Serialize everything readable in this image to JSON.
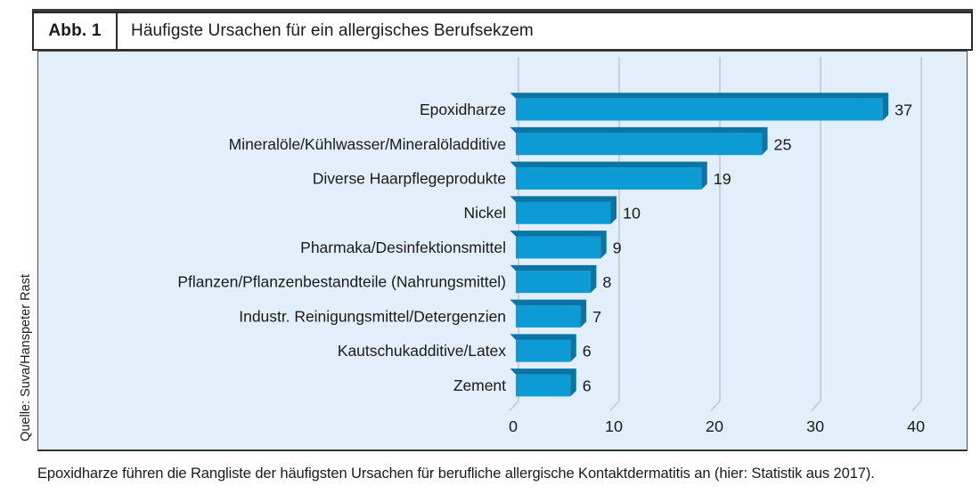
{
  "figure": {
    "label": "Abb. 1",
    "title": "Häufigste Ursachen für ein allergisches Berufsekzem"
  },
  "source": "Quelle: Suva/Hanspeter Rast",
  "caption": "Epoxidharze führen die Rangliste der häufigsten Ursachen für berufliche allergische Kontaktdermatitis an (hier: Statistik aus 2017).",
  "chart_data": {
    "type": "bar",
    "orientation": "horizontal",
    "style": "3d-bevel",
    "title": "Häufigste Ursachen für ein allergisches Berufsekzem",
    "categories": [
      "Epoxidharze",
      "Mineralöle/Kühlwasser/Mineralöladditive",
      "Diverse Haarpflegeprodukte",
      "Nickel",
      "Pharmaka/Desinfektionsmittel",
      "Pflanzen/Pflanzenbestandteile (Nahrungsmittel)",
      "Industr. Reinigungsmittel/Detergenzien",
      "Kautschukadditive/Latex",
      "Zement"
    ],
    "values": [
      37,
      25,
      19,
      10,
      9,
      8,
      7,
      6,
      6
    ],
    "x_ticks": [
      0,
      10,
      20,
      30,
      40
    ],
    "xlim": [
      0,
      40
    ],
    "grid": true,
    "legend": false,
    "colors": {
      "bar_front": "#0c9bd5",
      "bar_bevel": "#0a74a4",
      "panel_bg": "#e2eef9",
      "gridline": "#c2c8ce",
      "text": "#1a1a1a"
    }
  }
}
